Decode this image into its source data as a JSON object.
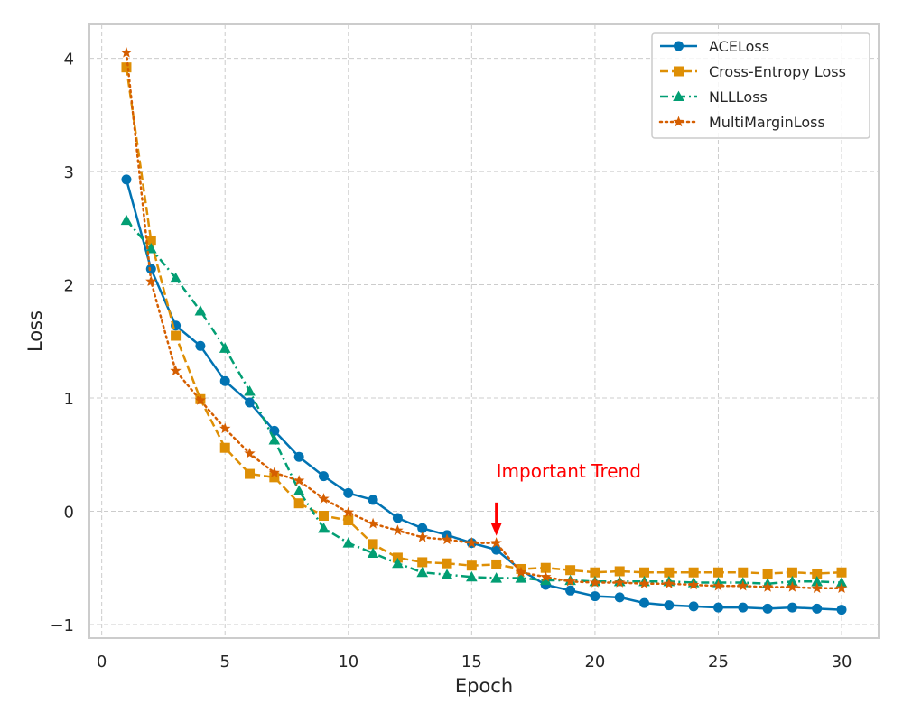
{
  "chart_data": {
    "type": "line",
    "title": "",
    "xlabel": "Epoch",
    "ylabel": "Loss",
    "xlim": [
      -0.5,
      31.5
    ],
    "ylim": [
      -1.12,
      4.3
    ],
    "xticks": [
      0,
      5,
      10,
      15,
      20,
      25,
      30
    ],
    "yticks": [
      -1,
      0,
      1,
      2,
      3,
      4
    ],
    "xtick_labels": [
      "0",
      "5",
      "10",
      "15",
      "20",
      "25",
      "30"
    ],
    "ytick_labels": [
      "−1",
      "0",
      "1",
      "2",
      "3",
      "4"
    ],
    "grid": true,
    "legend_position": "top-right",
    "x": [
      1,
      2,
      3,
      4,
      5,
      6,
      7,
      8,
      9,
      10,
      11,
      12,
      13,
      14,
      15,
      16,
      17,
      18,
      19,
      20,
      21,
      22,
      23,
      24,
      25,
      26,
      27,
      28,
      29,
      30
    ],
    "series": [
      {
        "name": "ACELoss",
        "color": "#0173b2",
        "marker": "circle",
        "line_style": "solid",
        "values": [
          2.93,
          2.14,
          1.64,
          1.46,
          1.15,
          0.96,
          0.71,
          0.48,
          0.31,
          0.16,
          0.1,
          -0.06,
          -0.15,
          -0.21,
          -0.28,
          -0.34,
          -0.52,
          -0.65,
          -0.7,
          -0.75,
          -0.76,
          -0.81,
          -0.83,
          -0.84,
          -0.85,
          -0.85,
          -0.86,
          -0.85,
          -0.86,
          -0.87
        ]
      },
      {
        "name": "Cross-Entropy Loss",
        "color": "#de8f05",
        "marker": "square",
        "line_style": "dashed",
        "values": [
          3.92,
          2.39,
          1.55,
          0.99,
          0.56,
          0.33,
          0.3,
          0.07,
          -0.04,
          -0.08,
          -0.29,
          -0.41,
          -0.45,
          -0.46,
          -0.48,
          -0.47,
          -0.51,
          -0.5,
          -0.52,
          -0.54,
          -0.53,
          -0.54,
          -0.54,
          -0.54,
          -0.54,
          -0.54,
          -0.55,
          -0.54,
          -0.55,
          -0.54
        ]
      },
      {
        "name": "NLLLoss",
        "color": "#029e73",
        "marker": "triangle",
        "line_style": "dashdot",
        "values": [
          2.57,
          2.32,
          2.06,
          1.77,
          1.44,
          1.06,
          0.63,
          0.18,
          -0.15,
          -0.28,
          -0.37,
          -0.46,
          -0.54,
          -0.56,
          -0.58,
          -0.59,
          -0.59,
          -0.61,
          -0.61,
          -0.62,
          -0.62,
          -0.62,
          -0.62,
          -0.63,
          -0.63,
          -0.63,
          -0.64,
          -0.62,
          -0.62,
          -0.63
        ]
      },
      {
        "name": "MultiMarginLoss",
        "color": "#d55e00",
        "marker": "star",
        "line_style": "dotted",
        "values": [
          4.05,
          2.03,
          1.24,
          0.98,
          0.73,
          0.51,
          0.34,
          0.27,
          0.11,
          -0.01,
          -0.11,
          -0.17,
          -0.23,
          -0.25,
          -0.28,
          -0.28,
          -0.54,
          -0.58,
          -0.62,
          -0.63,
          -0.63,
          -0.64,
          -0.64,
          -0.65,
          -0.66,
          -0.66,
          -0.67,
          -0.67,
          -0.68,
          -0.68
        ]
      }
    ],
    "annotation": {
      "text": "Important Trend",
      "x": 16,
      "y": -0.2,
      "text_x": 16,
      "text_y": 0.3,
      "color": "#ff0000"
    }
  },
  "colors": {
    "background": "#ffffff",
    "grid": "#cccccc",
    "spine": "#cccccc",
    "text": "#262626"
  }
}
